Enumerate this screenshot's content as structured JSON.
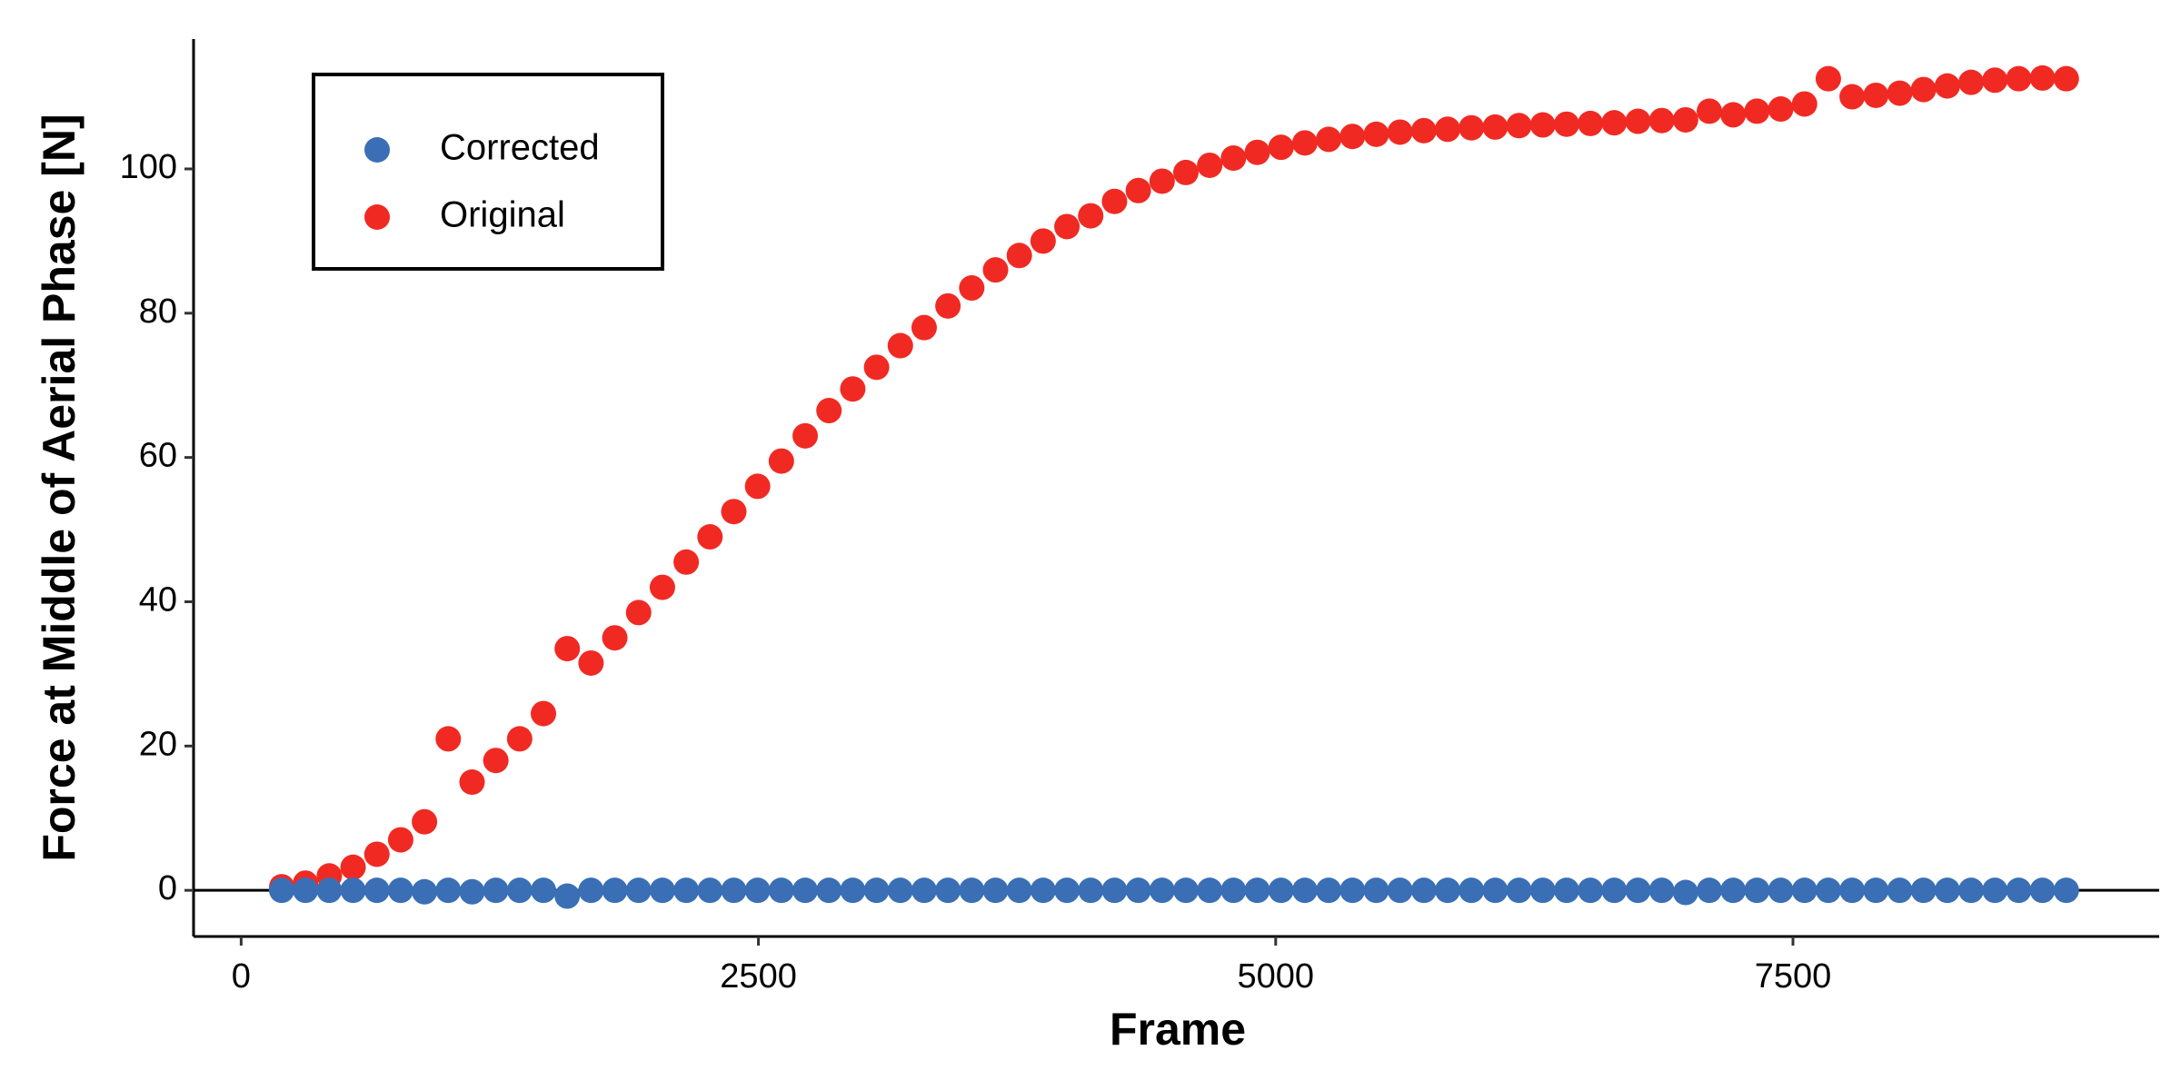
{
  "chart_data": {
    "type": "scatter",
    "x_label": "Frame",
    "y_label": "Force at Middle of Aerial Phase [N]",
    "x": [
      196,
      311,
      426,
      541,
      656,
      771,
      886,
      1001,
      1116,
      1231,
      1346,
      1461,
      1576,
      1691,
      1806,
      1921,
      2036,
      2151,
      2266,
      2381,
      2496,
      2611,
      2726,
      2841,
      2956,
      3071,
      3186,
      3301,
      3416,
      3531,
      3646,
      3761,
      3876,
      3991,
      4106,
      4221,
      4336,
      4451,
      4566,
      4681,
      4796,
      4911,
      5026,
      5141,
      5256,
      5371,
      5486,
      5601,
      5716,
      5831,
      5946,
      6061,
      6176,
      6291,
      6406,
      6521,
      6636,
      6751,
      6866,
      6981,
      7096,
      7211,
      7326,
      7441,
      7556,
      7671,
      7786,
      7901,
      8016,
      8131,
      8246,
      8361,
      8476,
      8591,
      8706,
      8821
    ],
    "series": [
      {
        "name": "Corrected",
        "color": "#3a6fb5",
        "values": [
          0,
          0,
          0,
          0,
          0,
          0,
          -0.2,
          0,
          -0.2,
          0,
          0,
          0,
          -0.8,
          0,
          0,
          0,
          0,
          0,
          0,
          0,
          0,
          0,
          0,
          0,
          0,
          0,
          0,
          0,
          0,
          0,
          0,
          0,
          0,
          0,
          0,
          0,
          0,
          0,
          0,
          0,
          0,
          0,
          0,
          0,
          0,
          0,
          0,
          0,
          0,
          0,
          0,
          0,
          0,
          0,
          0,
          0,
          0,
          0,
          0,
          -0.3,
          0,
          0,
          0,
          0,
          0,
          0,
          0,
          0,
          0,
          0,
          0,
          0,
          0,
          0,
          0,
          0
        ]
      },
      {
        "name": "Original",
        "color": "#f02a23",
        "values": [
          0.5,
          1,
          2,
          3.2,
          5,
          7,
          9.5,
          21,
          15,
          18,
          21,
          24.5,
          33.5,
          31.5,
          35,
          38.5,
          42,
          45.5,
          49,
          52.5,
          56,
          59.5,
          63,
          66.5,
          69.5,
          72.5,
          75.5,
          78,
          81,
          83.5,
          86,
          88,
          90,
          92,
          93.5,
          95.5,
          97,
          98.3,
          99.5,
          100.5,
          101.5,
          102.3,
          103,
          103.6,
          104.1,
          104.5,
          104.8,
          105.1,
          105.3,
          105.5,
          105.7,
          105.8,
          106,
          106.1,
          106.2,
          106.3,
          106.4,
          106.6,
          106.7,
          106.8,
          108,
          107.5,
          108,
          108.3,
          109,
          112.5,
          110,
          110.2,
          110.5,
          111,
          111.5,
          112,
          112.3,
          112.5,
          112.6,
          112.5
        ]
      }
    ],
    "xlim": [
      -230,
      9270
    ],
    "ylim": [
      -6.4,
      118
    ],
    "xticks": [
      0,
      2500,
      5000,
      7500
    ],
    "yticks": [
      0,
      20,
      40,
      60,
      80,
      100
    ],
    "hline": 0,
    "grid": false,
    "legend": "top-left"
  }
}
